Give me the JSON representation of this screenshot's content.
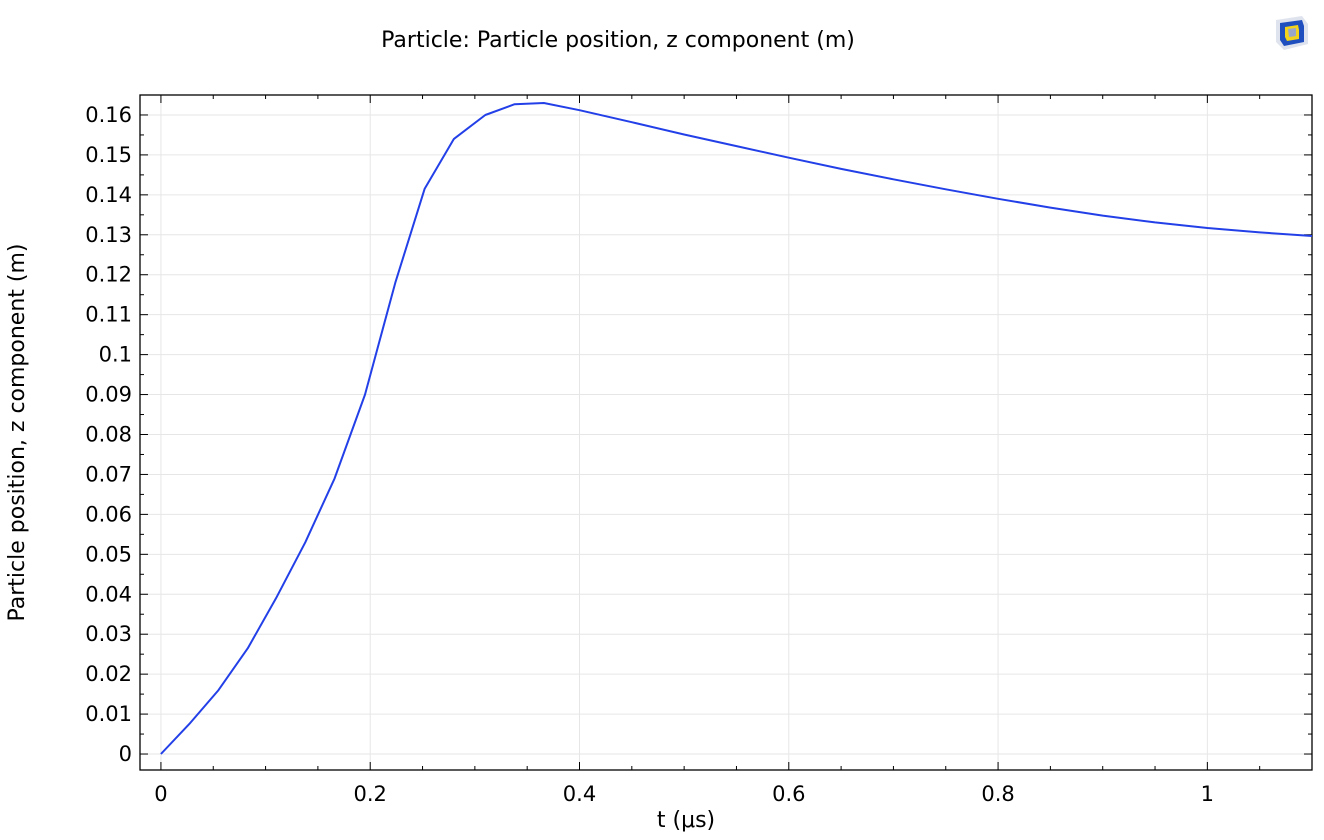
{
  "chart_data": {
    "type": "line",
    "title": "Particle: Particle position, z component (m)",
    "xlabel": "t (μs)",
    "ylabel": "Particle position, z component (m)",
    "xlim": [
      -0.02,
      1.1
    ],
    "ylim": [
      -0.004,
      0.165
    ],
    "xticks": [
      0,
      0.2,
      0.4,
      0.6,
      0.8,
      1
    ],
    "xtick_labels": [
      "0",
      "0.2",
      "0.4",
      "0.6",
      "0.8",
      "1"
    ],
    "yticks": [
      0,
      0.01,
      0.02,
      0.03,
      0.04,
      0.05,
      0.06,
      0.07,
      0.08,
      0.09,
      0.1,
      0.11,
      0.12,
      0.13,
      0.14,
      0.15,
      0.16
    ],
    "ytick_labels": [
      "0",
      "0.01",
      "0.02",
      "0.03",
      "0.04",
      "0.05",
      "0.06",
      "0.07",
      "0.08",
      "0.09",
      "0.1",
      "0.11",
      "0.12",
      "0.13",
      "0.14",
      "0.15",
      "0.16"
    ],
    "grid": true,
    "legend": "none",
    "series": [
      {
        "color": "#2340e8",
        "x": [
          0,
          0.027,
          0.055,
          0.083,
          0.11,
          0.138,
          0.166,
          0.195,
          0.224,
          0.252,
          0.28,
          0.31,
          0.338,
          0.366,
          0.4,
          0.45,
          0.5,
          0.55,
          0.6,
          0.65,
          0.7,
          0.75,
          0.8,
          0.85,
          0.9,
          0.95,
          1.0,
          1.05,
          1.1
        ],
        "y": [
          0,
          0.0075,
          0.016,
          0.0265,
          0.039,
          0.053,
          0.069,
          0.09,
          0.118,
          0.1415,
          0.154,
          0.16,
          0.1627,
          0.163,
          0.1612,
          0.1582,
          0.1551,
          0.1522,
          0.1493,
          0.1465,
          0.1439,
          0.1414,
          0.139,
          0.1368,
          0.1348,
          0.1331,
          0.1317,
          0.1306,
          0.1297
        ]
      }
    ]
  },
  "logo": {
    "name": "comsol-logo",
    "colors": [
      "#1f4fbf",
      "#f2d21b",
      "#9aa7c8"
    ]
  }
}
